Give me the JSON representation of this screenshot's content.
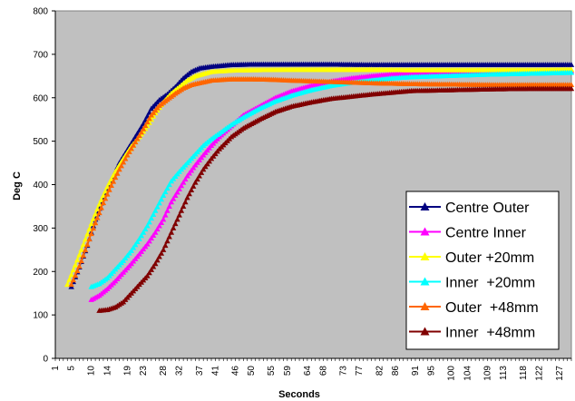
{
  "chart_data": {
    "type": "line",
    "xlabel": "Seconds",
    "ylabel": "Deg C",
    "ylim": [
      0,
      800
    ],
    "y_ticks": [
      0,
      100,
      200,
      300,
      400,
      500,
      600,
      700,
      800
    ],
    "xlim": [
      1,
      130
    ],
    "x_tick_labels": [
      "1",
      "5",
      "10",
      "14",
      "19",
      "23",
      "28",
      "32",
      "37",
      "41",
      "46",
      "50",
      "55",
      "59",
      "64",
      "68",
      "73",
      "77",
      "82",
      "86",
      "91",
      "95",
      "100",
      "104",
      "109",
      "113",
      "118",
      "122",
      "127"
    ],
    "grid": false,
    "plot_background": "#c0c0c0",
    "legend_position": "bottom-right",
    "series": [
      {
        "name": "Centre Outer",
        "color": "#000080",
        "marker": "triangle",
        "points": [
          [
            5,
            165
          ],
          [
            7,
            210
          ],
          [
            9,
            260
          ],
          [
            11,
            320
          ],
          [
            13,
            370
          ],
          [
            15,
            410
          ],
          [
            17,
            450
          ],
          [
            19,
            480
          ],
          [
            21,
            510
          ],
          [
            23,
            540
          ],
          [
            25,
            575
          ],
          [
            27,
            595
          ],
          [
            29,
            608
          ],
          [
            31,
            625
          ],
          [
            33,
            645
          ],
          [
            35,
            660
          ],
          [
            37,
            668
          ],
          [
            40,
            672
          ],
          [
            45,
            676
          ],
          [
            50,
            677
          ],
          [
            55,
            677
          ],
          [
            60,
            677
          ],
          [
            70,
            677
          ],
          [
            80,
            676
          ],
          [
            90,
            676
          ],
          [
            100,
            676
          ],
          [
            110,
            676
          ],
          [
            120,
            676
          ],
          [
            130,
            676
          ]
        ]
      },
      {
        "name": "Centre Inner",
        "color": "#ff00ff",
        "marker": "triangle",
        "points": [
          [
            10,
            135
          ],
          [
            12,
            145
          ],
          [
            14,
            160
          ],
          [
            16,
            178
          ],
          [
            18,
            198
          ],
          [
            20,
            218
          ],
          [
            22,
            240
          ],
          [
            24,
            263
          ],
          [
            26,
            290
          ],
          [
            28,
            320
          ],
          [
            30,
            360
          ],
          [
            32,
            390
          ],
          [
            34,
            420
          ],
          [
            36,
            445
          ],
          [
            38,
            468
          ],
          [
            40,
            490
          ],
          [
            42,
            510
          ],
          [
            45,
            535
          ],
          [
            48,
            560
          ],
          [
            52,
            580
          ],
          [
            56,
            600
          ],
          [
            60,
            615
          ],
          [
            65,
            628
          ],
          [
            70,
            638
          ],
          [
            75,
            645
          ],
          [
            80,
            650
          ],
          [
            85,
            654
          ],
          [
            90,
            656
          ],
          [
            100,
            658
          ],
          [
            110,
            660
          ],
          [
            120,
            661
          ],
          [
            130,
            662
          ]
        ]
      },
      {
        "name": "Outer +20mm",
        "color": "#ffff00",
        "marker": "triangle",
        "points": [
          [
            4,
            170
          ],
          [
            6,
            215
          ],
          [
            8,
            262
          ],
          [
            10,
            310
          ],
          [
            12,
            355
          ],
          [
            14,
            395
          ],
          [
            16,
            430
          ],
          [
            18,
            460
          ],
          [
            20,
            488
          ],
          [
            22,
            510
          ],
          [
            24,
            535
          ],
          [
            26,
            565
          ],
          [
            28,
            590
          ],
          [
            30,
            610
          ],
          [
            32,
            625
          ],
          [
            34,
            640
          ],
          [
            36,
            650
          ],
          [
            38,
            655
          ],
          [
            40,
            660
          ],
          [
            45,
            663
          ],
          [
            50,
            664
          ],
          [
            60,
            665
          ],
          [
            70,
            665
          ],
          [
            80,
            665
          ],
          [
            90,
            664
          ],
          [
            100,
            664
          ],
          [
            110,
            664
          ],
          [
            120,
            664
          ],
          [
            130,
            665
          ]
        ]
      },
      {
        "name": "Inner  +20mm",
        "color": "#00ffff",
        "marker": "triangle",
        "points": [
          [
            10,
            165
          ],
          [
            12,
            172
          ],
          [
            14,
            185
          ],
          [
            16,
            205
          ],
          [
            18,
            225
          ],
          [
            20,
            248
          ],
          [
            22,
            275
          ],
          [
            24,
            305
          ],
          [
            26,
            340
          ],
          [
            28,
            375
          ],
          [
            30,
            408
          ],
          [
            32,
            430
          ],
          [
            34,
            450
          ],
          [
            36,
            470
          ],
          [
            38,
            490
          ],
          [
            40,
            505
          ],
          [
            42,
            518
          ],
          [
            45,
            538
          ],
          [
            48,
            555
          ],
          [
            52,
            575
          ],
          [
            56,
            592
          ],
          [
            60,
            605
          ],
          [
            65,
            618
          ],
          [
            70,
            628
          ],
          [
            75,
            635
          ],
          [
            80,
            640
          ],
          [
            85,
            645
          ],
          [
            90,
            648
          ],
          [
            100,
            651
          ],
          [
            110,
            654
          ],
          [
            120,
            656
          ],
          [
            130,
            658
          ]
        ]
      },
      {
        "name": "Outer  +48mm",
        "color": "#ff6600",
        "marker": "triangle",
        "points": [
          [
            5,
            170
          ],
          [
            7,
            212
          ],
          [
            9,
            262
          ],
          [
            11,
            312
          ],
          [
            13,
            358
          ],
          [
            15,
            398
          ],
          [
            17,
            435
          ],
          [
            19,
            468
          ],
          [
            21,
            498
          ],
          [
            23,
            528
          ],
          [
            25,
            560
          ],
          [
            27,
            582
          ],
          [
            29,
            596
          ],
          [
            31,
            610
          ],
          [
            33,
            622
          ],
          [
            35,
            630
          ],
          [
            38,
            636
          ],
          [
            40,
            640
          ],
          [
            45,
            643
          ],
          [
            50,
            643
          ],
          [
            55,
            642
          ],
          [
            60,
            640
          ],
          [
            70,
            637
          ],
          [
            80,
            634
          ],
          [
            90,
            632
          ],
          [
            100,
            631
          ],
          [
            110,
            630
          ],
          [
            120,
            630
          ],
          [
            130,
            630
          ]
        ]
      },
      {
        "name": "Inner  +48mm",
        "color": "#800000",
        "marker": "triangle",
        "points": [
          [
            12,
            110
          ],
          [
            14,
            112
          ],
          [
            16,
            118
          ],
          [
            18,
            130
          ],
          [
            20,
            150
          ],
          [
            22,
            170
          ],
          [
            24,
            190
          ],
          [
            26,
            218
          ],
          [
            28,
            250
          ],
          [
            30,
            290
          ],
          [
            32,
            330
          ],
          [
            34,
            370
          ],
          [
            36,
            405
          ],
          [
            38,
            435
          ],
          [
            40,
            460
          ],
          [
            42,
            482
          ],
          [
            45,
            510
          ],
          [
            48,
            530
          ],
          [
            52,
            550
          ],
          [
            56,
            568
          ],
          [
            60,
            580
          ],
          [
            65,
            590
          ],
          [
            70,
            598
          ],
          [
            75,
            603
          ],
          [
            80,
            608
          ],
          [
            85,
            612
          ],
          [
            90,
            616
          ],
          [
            100,
            618
          ],
          [
            110,
            620
          ],
          [
            120,
            621
          ],
          [
            130,
            621
          ]
        ]
      }
    ]
  }
}
